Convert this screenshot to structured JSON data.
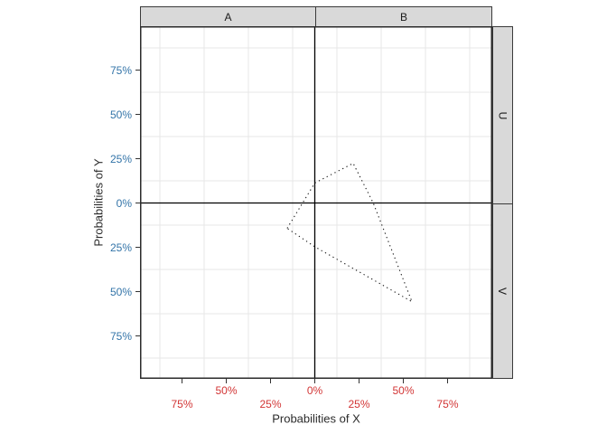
{
  "chart_data": {
    "type": "line",
    "geometry": "dotted closed polygon on mirrored probability axes",
    "title": "",
    "facets": {
      "top": [
        "A",
        "B"
      ],
      "right": [
        "U",
        "V"
      ]
    },
    "x_axis": {
      "title": "Probabilities of X",
      "tick_labels": [
        "75%",
        "50%",
        "25%",
        "0%",
        "25%",
        "50%",
        "75%"
      ],
      "tick_values": [
        -75,
        -50,
        -25,
        0,
        25,
        50,
        75
      ],
      "dodge_rows": [
        2,
        1,
        2,
        1,
        2,
        1,
        2
      ],
      "label_color": "#D23535",
      "range_pct": [
        -100,
        100
      ]
    },
    "y_axis": {
      "title": "Probabilities of Y",
      "tick_labels": [
        "75%",
        "50%",
        "25%",
        "0%",
        "25%",
        "50%",
        "75%"
      ],
      "tick_values": [
        75,
        50,
        25,
        0,
        -25,
        -50,
        -75
      ],
      "label_color": "#3374A8",
      "range_pct": [
        -100,
        100
      ]
    },
    "minor_gridlines_pct": [
      -87.5,
      -62.5,
      -37.5,
      -12.5,
      12.5,
      37.5,
      62.5,
      87.5
    ],
    "zero_lines": {
      "x_at_pct": 0,
      "y_at_pct": 0,
      "color": "#000000"
    },
    "polygon": {
      "style": "dotted",
      "color": "#1a1a1a",
      "vertices_pct": [
        [
          -15.6,
          -14.3
        ],
        [
          0,
          11.3
        ],
        [
          21.7,
          22.4
        ],
        [
          33,
          0
        ],
        [
          54.9,
          -55.7
        ],
        [
          0,
          -24.7
        ]
      ]
    },
    "grid": "minor only",
    "legend": "none"
  },
  "colors": {
    "background": "#ffffff",
    "strip_fill": "#D9D9D9",
    "strip_border": "#3a3a3a",
    "panel_border": "#2b2b2b",
    "gridline": "#E7E7E7",
    "tick_mark": "#333333",
    "x_label": "#D23535",
    "y_label": "#3374A8"
  }
}
